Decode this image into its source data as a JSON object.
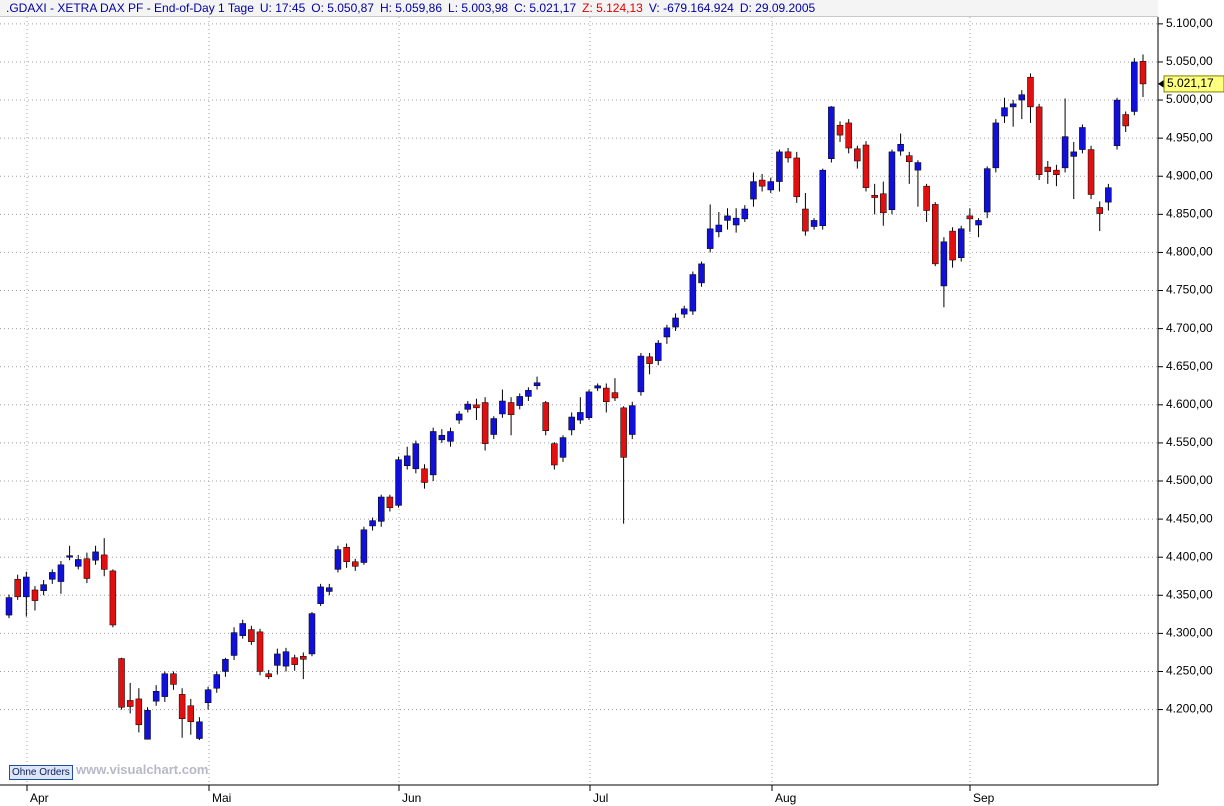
{
  "chart_data": {
    "type": "candlestick",
    "header": [
      ".GDAXI - XETRA DAX PF - End-of-Day 1 Tage",
      "U: 17:45",
      "O: 5.050,87",
      "H: 5.059,86",
      "L: 5.003,98",
      "C: 5.021,17",
      "Z: 5.124,13",
      "V: -679.164.924",
      "D: 29.09.2005"
    ],
    "months": [
      "Apr",
      "Mai",
      "Jun",
      "Jul",
      "Aug",
      "Sep"
    ],
    "ylim": [
      4101,
      5109
    ],
    "yticks": [
      {
        "value": 4200,
        "label": "4.200,00"
      },
      {
        "value": 4250,
        "label": "4.250,00"
      },
      {
        "value": 4300,
        "label": "4.300,00"
      },
      {
        "value": 4350,
        "label": "4.350,00"
      },
      {
        "value": 4400,
        "label": "4.400,00"
      },
      {
        "value": 4450,
        "label": "4.450,00"
      },
      {
        "value": 4500,
        "label": "4.500,00"
      },
      {
        "value": 4550,
        "label": "4.550,00"
      },
      {
        "value": 4600,
        "label": "4.600,00"
      },
      {
        "value": 4650,
        "label": "4.650,00"
      },
      {
        "value": 4700,
        "label": "4.700,00"
      },
      {
        "value": 4750,
        "label": "4.750,00"
      },
      {
        "value": 4800,
        "label": "4.800,00"
      },
      {
        "value": 4850,
        "label": "4.850,00"
      },
      {
        "value": 4900,
        "label": "4.900,00"
      },
      {
        "value": 4950,
        "label": "4.950,00"
      },
      {
        "value": 5000,
        "label": "5.000,00"
      },
      {
        "value": 5050,
        "label": "5.050,00"
      },
      {
        "value": 5100,
        "label": "5.100,00"
      }
    ],
    "last_label": "5.021,17",
    "grid": true,
    "up_color": "#1010d8",
    "down_color": "#e01010",
    "open": [
      4324,
      4371,
      4348,
      4357,
      4356,
      4371,
      4368,
      4400,
      4388,
      4398,
      4396,
      4403,
      4382,
      4267,
      4212,
      4214,
      4161,
      4211,
      4217,
      4247,
      4220,
      4205,
      4162,
      4209,
      4228,
      4250,
      4271,
      4297,
      4305,
      4302,
      4247,
      4258,
      4257,
      4268,
      4270,
      4273,
      4339,
      4355,
      4384,
      4413,
      4394,
      4393,
      4441,
      4447,
      4479,
      4468,
      4520,
      4516,
      4516,
      4508,
      4554,
      4552,
      4580,
      4594,
      4600,
      4603,
      4561,
      4588,
      4603,
      4599,
      4611,
      4625,
      4603,
      4549,
      4531,
      4567,
      4580,
      4583,
      4622,
      4622,
      4616,
      4596,
      4561,
      4617,
      4663,
      4658,
      4689,
      4702,
      4719,
      4723,
      4760,
      4805,
      4827,
      4842,
      4836,
      4844,
      4870,
      4895,
      4882,
      4893,
      4932,
      4924,
      4857,
      4834,
      4835,
      4923,
      4967,
      4970,
      4936,
      4941,
      4875,
      4877,
      4856,
      4933,
      4927,
      4908,
      4887,
      4863,
      4756,
      4828,
      4793,
      4848,
      4836,
      4853,
      4911,
      4979,
      4991,
      5000,
      5030,
      4991,
      4912,
      4908,
      4911,
      4926,
      4935,
      4935,
      4859,
      4866,
      4940,
      4981,
      4985,
      5050.87
    ],
    "high": [
      4351,
      4377,
      4381,
      4362,
      4370,
      4384,
      4395,
      4415,
      4403,
      4406,
      4415,
      4425,
      4384,
      4268,
      4235,
      4228,
      4203,
      4232,
      4250,
      4250,
      4228,
      4214,
      4190,
      4230,
      4250,
      4268,
      4308,
      4318,
      4310,
      4306,
      4252,
      4280,
      4281,
      4272,
      4275,
      4328,
      4365,
      4365,
      4415,
      4418,
      4398,
      4440,
      4452,
      4482,
      4482,
      4532,
      4545,
      4553,
      4522,
      4570,
      4568,
      4570,
      4592,
      4605,
      4608,
      4610,
      4585,
      4620,
      4610,
      4615,
      4623,
      4637,
      4605,
      4551,
      4560,
      4590,
      4610,
      4620,
      4628,
      4628,
      4635,
      4598,
      4604,
      4668,
      4668,
      4685,
      4705,
      4720,
      4730,
      4775,
      4788,
      4863,
      4853,
      4858,
      4858,
      4862,
      4905,
      4903,
      4898,
      4935,
      4937,
      4932,
      4878,
      4845,
      4910,
      4992,
      4972,
      4975,
      4940,
      4946,
      4890,
      4893,
      4935,
      4956,
      4932,
      4921,
      4890,
      4866,
      4820,
      4833,
      4835,
      4858,
      4845,
      4913,
      4975,
      5003,
      5000,
      5013,
      5035,
      4995,
      4920,
      4915,
      5002,
      4945,
      4968,
      4940,
      4867,
      4890,
      5003,
      4985,
      5055,
      5059.86
    ],
    "low": [
      4320,
      4344,
      4322,
      4330,
      4350,
      4365,
      4352,
      4396,
      4384,
      4366,
      4390,
      4375,
      4308,
      4200,
      4195,
      4170,
      4161,
      4205,
      4210,
      4226,
      4163,
      4167,
      4160,
      4200,
      4222,
      4243,
      4265,
      4293,
      4285,
      4245,
      4240,
      4246,
      4250,
      4251,
      4240,
      4270,
      4336,
      4350,
      4380,
      4386,
      4382,
      4390,
      4435,
      4440,
      4460,
      4465,
      4515,
      4510,
      4490,
      4500,
      4550,
      4545,
      4575,
      4590,
      4580,
      4540,
      4555,
      4583,
      4560,
      4594,
      4605,
      4620,
      4560,
      4515,
      4525,
      4560,
      4575,
      4580,
      4618,
      4590,
      4605,
      4444,
      4555,
      4612,
      4640,
      4652,
      4680,
      4697,
      4714,
      4718,
      4755,
      4800,
      4820,
      4830,
      4826,
      4840,
      4860,
      4880,
      4878,
      4880,
      4918,
      4865,
      4822,
      4830,
      4830,
      4918,
      4945,
      4930,
      4910,
      4880,
      4850,
      4835,
      4850,
      4927,
      4890,
      4860,
      4840,
      4782,
      4728,
      4780,
      4788,
      4827,
      4820,
      4845,
      4905,
      4970,
      4965,
      4975,
      4970,
      4895,
      4890,
      4887,
      4905,
      4870,
      4930,
      4870,
      4828,
      4855,
      4935,
      4958,
      4980,
      5003.98
    ],
    "close": [
      4347,
      4348,
      4374,
      4343,
      4364,
      4380,
      4390,
      4402,
      4397,
      4372,
      4407,
      4384,
      4311,
      4203,
      4204,
      4180,
      4199,
      4224,
      4247,
      4233,
      4188,
      4184,
      4184,
      4226,
      4246,
      4266,
      4301,
      4313,
      4289,
      4250,
      4243,
      4273,
      4276,
      4259,
      4266,
      4326,
      4361,
      4360,
      4410,
      4394,
      4388,
      4436,
      4448,
      4479,
      4465,
      4528,
      4533,
      4549,
      4498,
      4565,
      4560,
      4565,
      4588,
      4601,
      4596,
      4549,
      4582,
      4605,
      4587,
      4611,
      4619,
      4629,
      4566,
      4521,
      4557,
      4584,
      4590,
      4617,
      4625,
      4604,
      4609,
      4531,
      4599,
      4664,
      4654,
      4681,
      4701,
      4714,
      4726,
      4771,
      4785,
      4831,
      4836,
      4848,
      4845,
      4857,
      4893,
      4887,
      4893,
      4932,
      4924,
      4873,
      4828,
      4842,
      4908,
      4991,
      4954,
      4937,
      4920,
      4885,
      4872,
      4852,
      4932,
      4942,
      4919,
      4918,
      4855,
      4785,
      4814,
      4790,
      4831,
      4844,
      4842,
      4910,
      4970,
      4990,
      4995,
      5007,
      4991,
      4902,
      4906,
      4902,
      4952,
      4932,
      4964,
      4876,
      4851,
      4885,
      5000,
      4966,
      5050,
      5021.17
    ]
  },
  "footer": {
    "button": "Ohne Orders",
    "watermark": "www.visualchart.com"
  }
}
